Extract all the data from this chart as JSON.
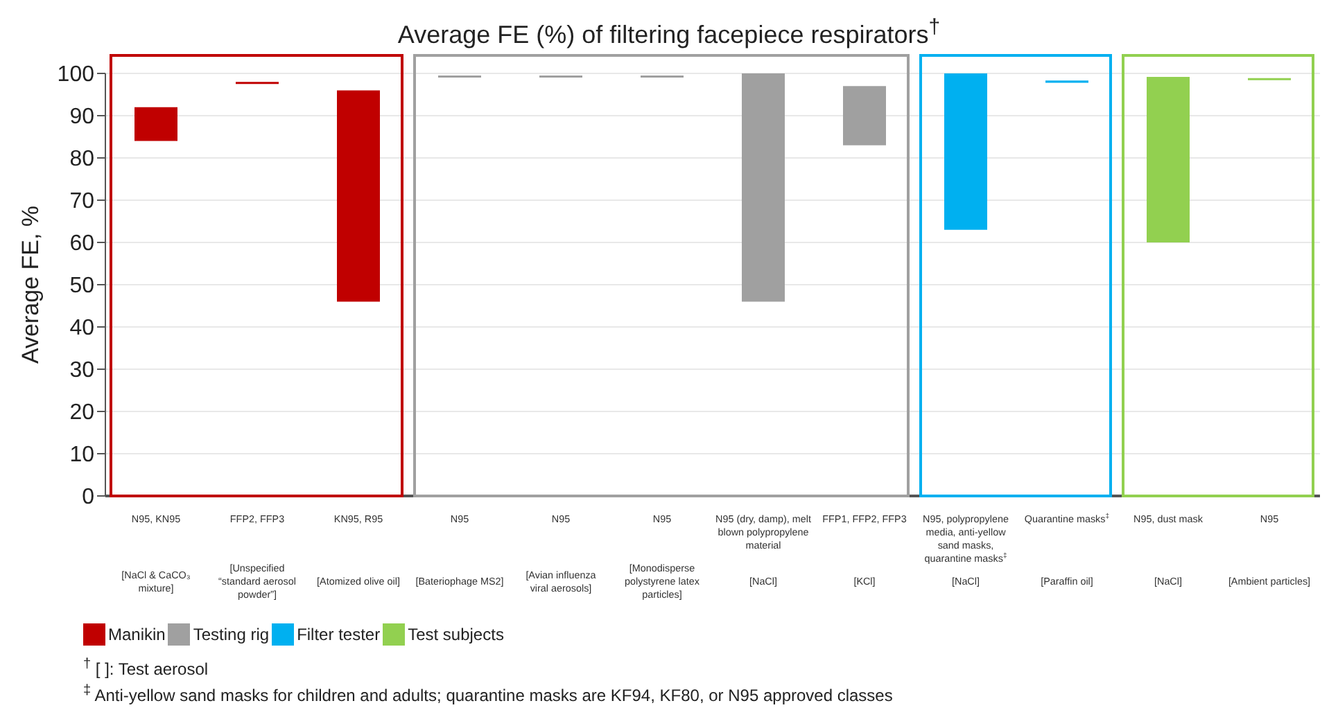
{
  "chart_data": {
    "type": "bar",
    "title": "Average FE (%) of filtering facepiece respirators$^{†}$",
    "ylabel": "Average FE, %",
    "categories": [
      "N95, KN95\n[NaCl & CaCO₃ mixture]",
      "FFP2, FFP3\n[Unspecified “standard aerosol powder”]",
      "KN95, R95\n[Atomized olive oil]",
      "N95\n[Bateriophage MS2]",
      "N95\n[Avian influenza viral aerosols]",
      "N95\n[Monodisperse polystyrene latex particles]",
      "N95 (dry, damp), melt blown polypropylene material\n[NaCl]",
      "FFP1, FFP2, FFP3\n[KCl]",
      "N95, polypropylene media, anti-yellow sand masks, quarantine masks$^{‡}$\n[NaCl]",
      "Quarantine masks$^{‡}$\n[Paraffin oil]",
      "N95, dust mask\n[NaCl]",
      "N95\n[Ambient particles]"
    ],
    "series": [
      {
        "name": "Manikin",
        "color": "#c00000",
        "values": [
          8,
          0.5,
          50,
          null,
          null,
          null,
          null,
          null,
          null,
          null,
          null,
          null
        ],
        "base": [
          84,
          97.5,
          46,
          null,
          null,
          null,
          null,
          null,
          null,
          null,
          null,
          null
        ]
      },
      {
        "name": "Testing rig",
        "color": "#a0a0a0",
        "values": [
          null,
          null,
          null,
          0.5,
          0.5,
          0.5,
          54,
          14,
          null,
          null,
          null,
          null
        ],
        "base": [
          null,
          null,
          null,
          99,
          99,
          99,
          46,
          83,
          null,
          null,
          null,
          null
        ]
      },
      {
        "name": "Filter tester",
        "color": "#00b0f0",
        "values": [
          null,
          null,
          null,
          null,
          null,
          null,
          null,
          null,
          37,
          0.5,
          null,
          null
        ],
        "base": [
          null,
          null,
          null,
          null,
          null,
          null,
          null,
          null,
          63,
          97.8,
          null,
          null
        ]
      },
      {
        "name": "Test subjects",
        "color": "#92d050",
        "values": [
          null,
          null,
          null,
          null,
          null,
          null,
          null,
          null,
          null,
          null,
          39.2,
          0.5
        ],
        "base": [
          null,
          null,
          null,
          null,
          null,
          null,
          null,
          null,
          null,
          null,
          60,
          98.4
        ]
      }
    ],
    "ylim": [
      0,
      100
    ],
    "yticks": [
      0,
      10,
      20,
      30,
      40,
      50,
      60,
      70,
      80,
      90,
      100
    ],
    "grid": "y",
    "legend": "bottom",
    "annotations": [
      "$^{†}$ [ ]: Test aerosol",
      "$^{‡}$ Anti-yellow sand masks for children and adults; quarantine masks are KF94, KF80, or N95 approved classes"
    ]
  }
}
